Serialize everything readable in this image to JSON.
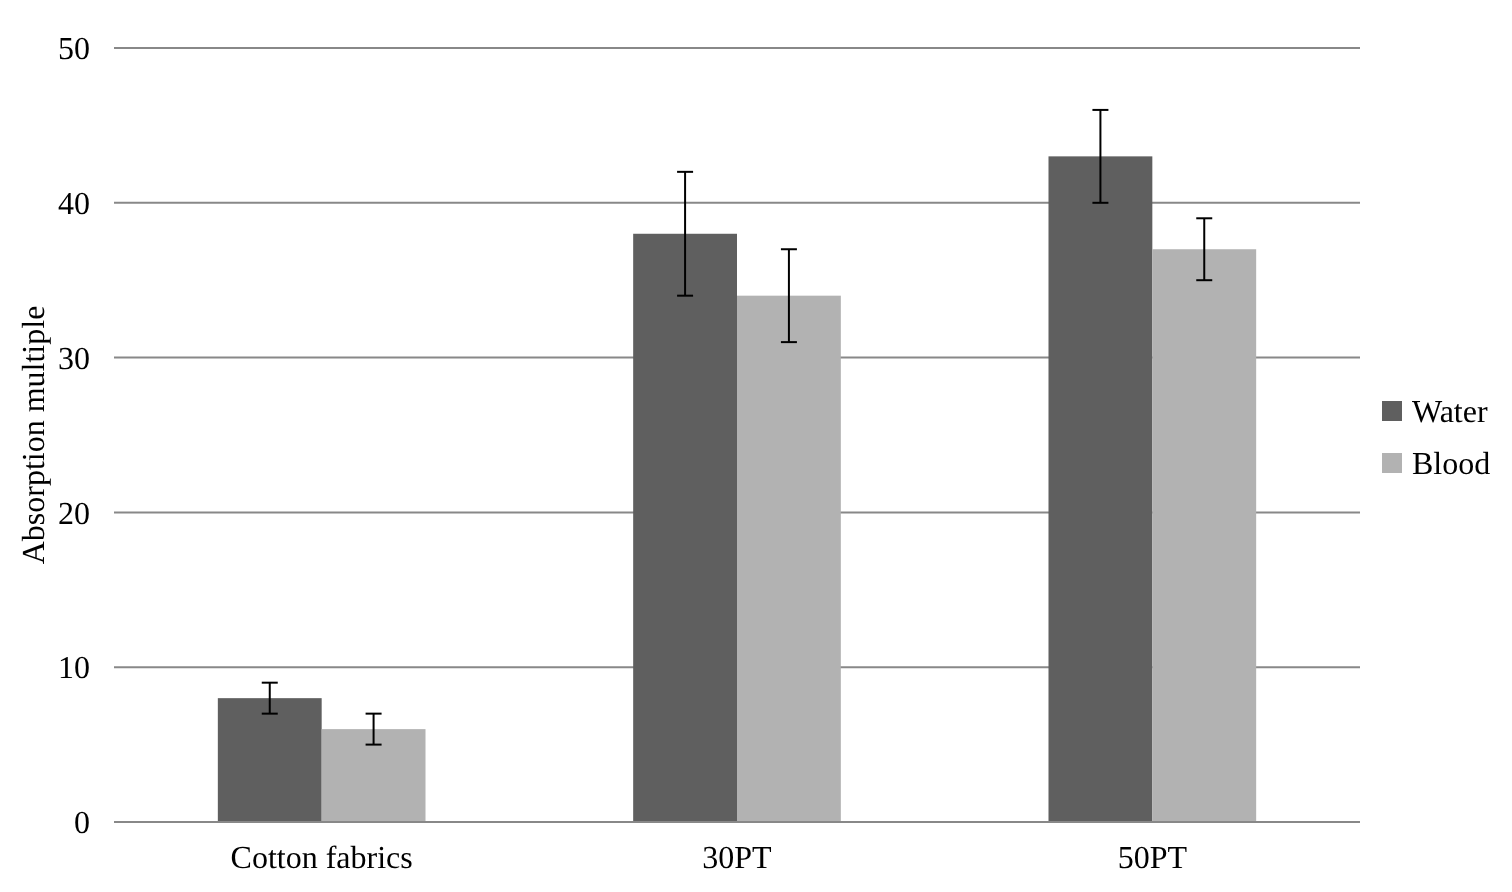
{
  "chart_data": {
    "type": "bar",
    "ylabel": "Absorption multiple",
    "categories": [
      "Cotton fabrics",
      "30PT",
      "50PT"
    ],
    "series": [
      {
        "name": "Water",
        "color": "#5f5f5f",
        "values": [
          8,
          38,
          43
        ],
        "errors": [
          1,
          4,
          3
        ]
      },
      {
        "name": "Blood",
        "color": "#b2b2b2",
        "values": [
          6,
          34,
          37
        ],
        "errors": [
          1,
          3,
          2
        ]
      }
    ],
    "ylim": [
      0,
      50
    ],
    "yticks": [
      0,
      10,
      20,
      30,
      40,
      50
    ],
    "grid": "y",
    "legend": "right"
  }
}
